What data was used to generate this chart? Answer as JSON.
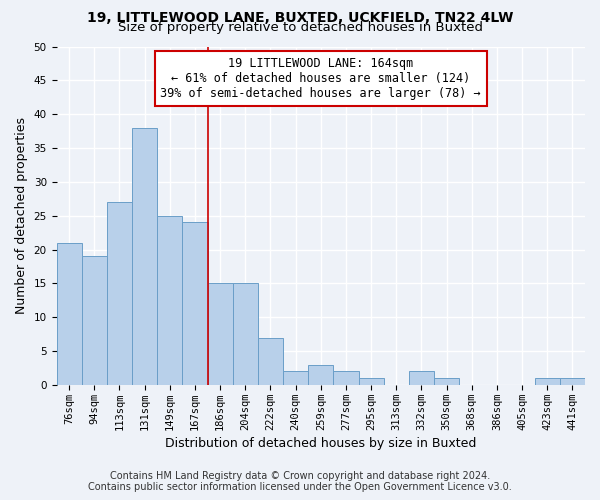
{
  "title1": "19, LITTLEWOOD LANE, BUXTED, UCKFIELD, TN22 4LW",
  "title2": "Size of property relative to detached houses in Buxted",
  "xlabel": "Distribution of detached houses by size in Buxted",
  "ylabel": "Number of detached properties",
  "categories": [
    "76sqm",
    "94sqm",
    "113sqm",
    "131sqm",
    "149sqm",
    "167sqm",
    "186sqm",
    "204sqm",
    "222sqm",
    "240sqm",
    "259sqm",
    "277sqm",
    "295sqm",
    "313sqm",
    "332sqm",
    "350sqm",
    "368sqm",
    "386sqm",
    "405sqm",
    "423sqm",
    "441sqm"
  ],
  "values": [
    21,
    19,
    27,
    38,
    25,
    24,
    15,
    15,
    7,
    2,
    3,
    2,
    1,
    0,
    2,
    1,
    0,
    0,
    0,
    1,
    1
  ],
  "bar_color": "#b8d0ea",
  "bar_edge_color": "#6a9ec8",
  "property_label": "19 LITTLEWOOD LANE: 164sqm",
  "annotation_line1": "← 61% of detached houses are smaller (124)",
  "annotation_line2": "39% of semi-detached houses are larger (78) →",
  "vline_color": "#cc0000",
  "vline_position": 5.5,
  "annotation_box_color": "#ffffff",
  "annotation_box_edge_color": "#cc0000",
  "footer1": "Contains HM Land Registry data © Crown copyright and database right 2024.",
  "footer2": "Contains public sector information licensed under the Open Government Licence v3.0.",
  "ylim": [
    0,
    50
  ],
  "yticks": [
    0,
    5,
    10,
    15,
    20,
    25,
    30,
    35,
    40,
    45,
    50
  ],
  "background_color": "#eef2f8",
  "grid_color": "#ffffff",
  "title_fontsize": 10,
  "subtitle_fontsize": 9.5,
  "ylabel_fontsize": 9,
  "xlabel_fontsize": 9,
  "tick_fontsize": 7.5,
  "annotation_fontsize": 8.5,
  "footer_fontsize": 7
}
